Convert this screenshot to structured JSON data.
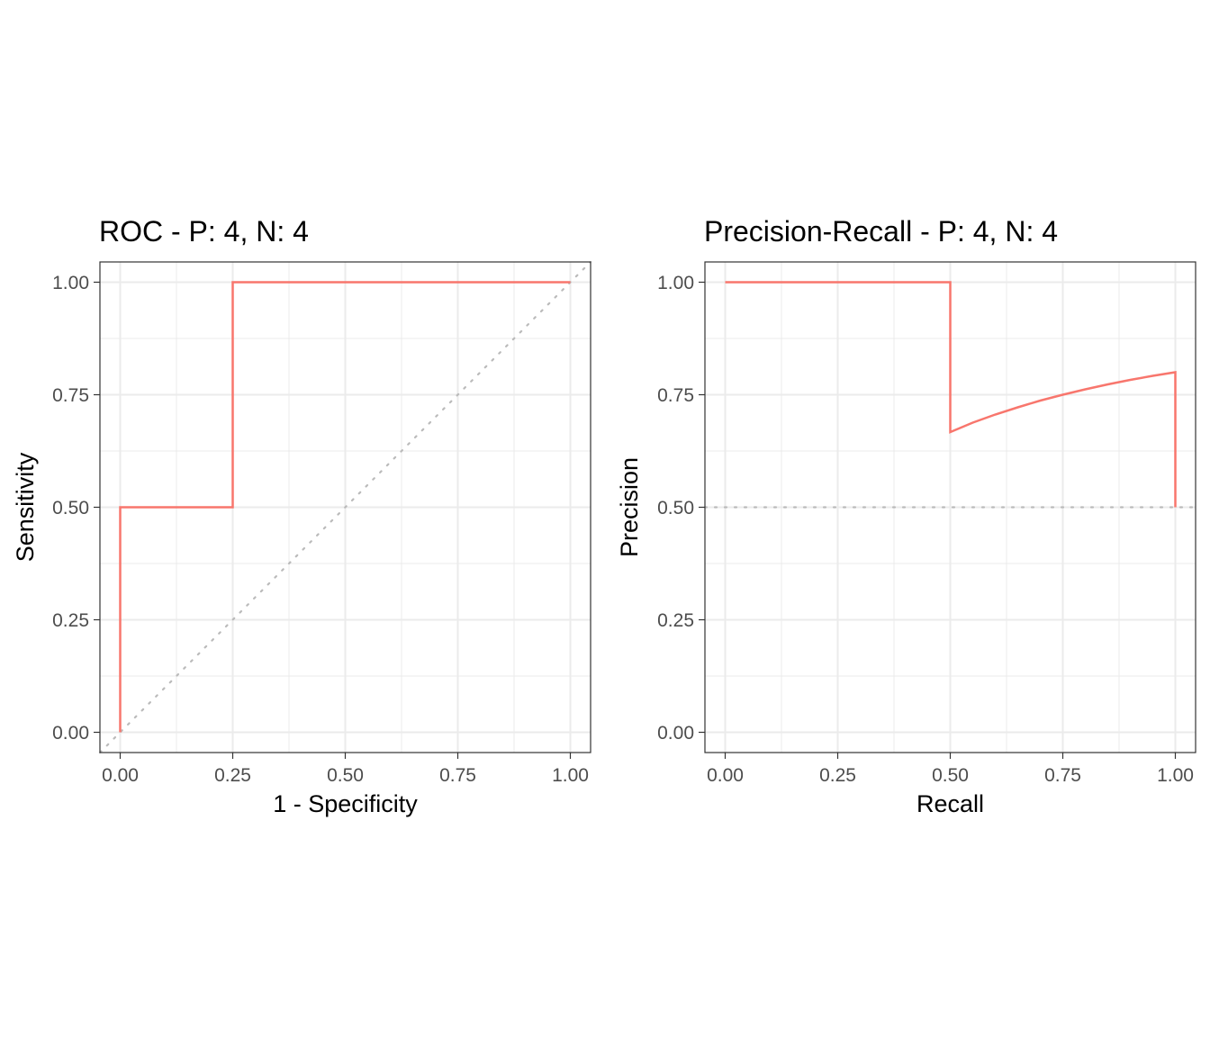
{
  "colors": {
    "curve": "#f8766d",
    "reference": "#bbbbbb"
  },
  "chart_data": [
    {
      "type": "line",
      "title": "ROC - P: 4, N: 4",
      "xlabel": "1 - Specificity",
      "ylabel": "Sensitivity",
      "xlim": [
        -0.045,
        1.045
      ],
      "ylim": [
        -0.045,
        1.045
      ],
      "ticks": [
        "0.00",
        "0.25",
        "0.50",
        "0.75",
        "1.00"
      ],
      "grid": true,
      "series": [
        {
          "x": [
            0,
            0,
            0.25,
            0.25,
            1
          ],
          "y": [
            0,
            0.5,
            0.5,
            1,
            1
          ]
        }
      ],
      "reference_line": {
        "kind": "diagonal",
        "x": [
          -0.045,
          1.045
        ],
        "y": [
          -0.045,
          1.045
        ]
      }
    },
    {
      "type": "line",
      "title": "Precision-Recall - P: 4, N: 4",
      "xlabel": "Recall",
      "ylabel": "Precision",
      "xlim": [
        -0.045,
        1.045
      ],
      "ylim": [
        -0.045,
        1.045
      ],
      "ticks": [
        "0.00",
        "0.25",
        "0.50",
        "0.75",
        "1.00"
      ],
      "grid": true,
      "series": [
        {
          "x": [
            0,
            0.5,
            0.5,
            0.55,
            0.6,
            0.65,
            0.7,
            0.75,
            0.8,
            0.85,
            0.9,
            0.95,
            1,
            1
          ],
          "y": [
            1,
            1,
            0.667,
            0.688,
            0.706,
            0.722,
            0.737,
            0.75,
            0.762,
            0.773,
            0.783,
            0.792,
            0.8,
            0.5
          ]
        }
      ],
      "reference_line": {
        "kind": "horizontal",
        "x": [
          -0.045,
          1.045
        ],
        "y": [
          0.5,
          0.5
        ]
      }
    }
  ]
}
